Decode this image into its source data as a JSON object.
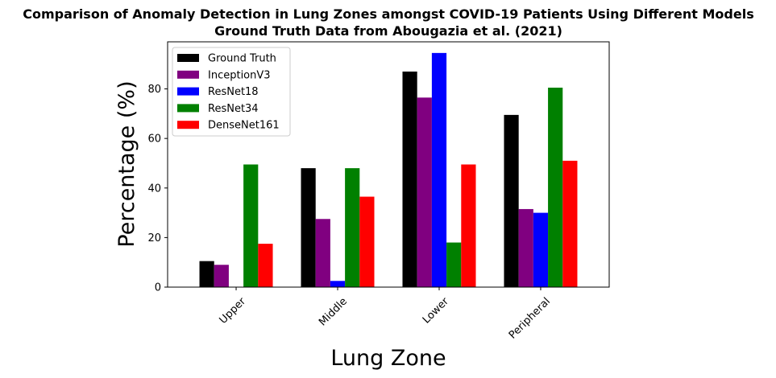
{
  "chart_data": {
    "type": "bar",
    "title": "Comparison of Anomaly Detection in Lung Zones amongst COVID-19 Patients Using Different Models",
    "subtitle": "Ground Truth Data from Abougazia et al. (2021)",
    "xlabel": "Lung Zone",
    "ylabel": "Percentage (%)",
    "categories": [
      "Upper",
      "Middle",
      "Lower",
      "Peripheral"
    ],
    "ylim": [
      0,
      99
    ],
    "yticks": [
      0,
      20,
      40,
      60,
      80
    ],
    "legend_position": "top-left",
    "grid": false,
    "series": [
      {
        "name": "Ground Truth",
        "color": "#000000",
        "values": [
          10.5,
          48.0,
          87.0,
          69.5
        ]
      },
      {
        "name": "InceptionV3",
        "color": "#800080",
        "values": [
          9.0,
          27.5,
          76.5,
          31.5
        ]
      },
      {
        "name": "ResNet18",
        "color": "#0000ff",
        "values": [
          0.0,
          2.5,
          94.5,
          30.0
        ]
      },
      {
        "name": "ResNet34",
        "color": "#008000",
        "values": [
          49.5,
          48.0,
          18.0,
          80.5
        ]
      },
      {
        "name": "DenseNet161",
        "color": "#ff0000",
        "values": [
          17.5,
          36.5,
          49.5,
          51.0
        ]
      }
    ]
  }
}
